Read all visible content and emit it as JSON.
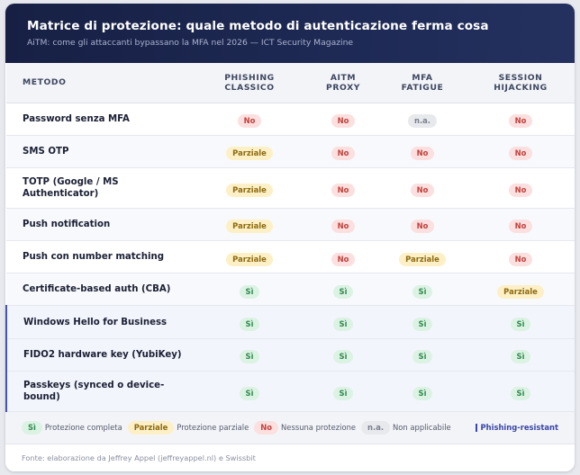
{
  "header": {
    "title": "Matrice di protezione: quale metodo di autenticazione ferma cosa",
    "subtitle": "AiTM: come gli attaccanti bypassano la MFA nel 2026 — ICT Security Magazine"
  },
  "table": {
    "columns": [
      "METODO",
      "PHISHING CLASSICO",
      "AITM PROXY",
      "MFA FATIGUE",
      "SESSION HIJACKING"
    ],
    "rows": [
      {
        "method": "Password senza MFA",
        "values": [
          "No",
          "No",
          "n.a.",
          "No"
        ]
      },
      {
        "method": "SMS OTP",
        "values": [
          "Parziale",
          "No",
          "No",
          "No"
        ]
      },
      {
        "method": "TOTP (Google / MS Authenticator)",
        "values": [
          "Parziale",
          "No",
          "No",
          "No"
        ]
      },
      {
        "method": "Push notification",
        "values": [
          "Parziale",
          "No",
          "No",
          "No"
        ]
      },
      {
        "method": "Push con number matching",
        "values": [
          "Parziale",
          "No",
          "Parziale",
          "No"
        ]
      },
      {
        "method": "Certificate-based auth (CBA)",
        "values": [
          "Sì",
          "Sì",
          "Sì",
          "Parziale"
        ]
      },
      {
        "method": "Windows Hello for Business",
        "values": [
          "Sì",
          "Sì",
          "Sì",
          "Sì"
        ]
      },
      {
        "method": "FIDO2 hardware key (YubiKey)",
        "values": [
          "Sì",
          "Sì",
          "Sì",
          "Sì"
        ]
      },
      {
        "method": "Passkeys (synced o device-bound)",
        "values": [
          "Sì",
          "Sì",
          "Sì",
          "Sì"
        ]
      }
    ]
  },
  "legend": {
    "items": [
      {
        "badge": "Sì",
        "text": "Protezione completa"
      },
      {
        "badge": "Parziale",
        "text": "Protezione parziale"
      },
      {
        "badge": "No",
        "text": "Nessuna protezione"
      },
      {
        "badge": "n.a.",
        "text": "Non applicabile"
      }
    ],
    "phishing_resistant": "Phishing-resistant"
  },
  "footer": {
    "source": "Fonte: elaborazione da Jeffrey Appel (jeffreyappel.nl) e Swissbit"
  },
  "colors": {
    "header_bg": "#1b2550",
    "si": "#2f8a4c",
    "parziale": "#8c6a10",
    "no": "#c2423d",
    "na": "#7a7f8c",
    "phishing_resistant_accent": "#3946a8"
  }
}
